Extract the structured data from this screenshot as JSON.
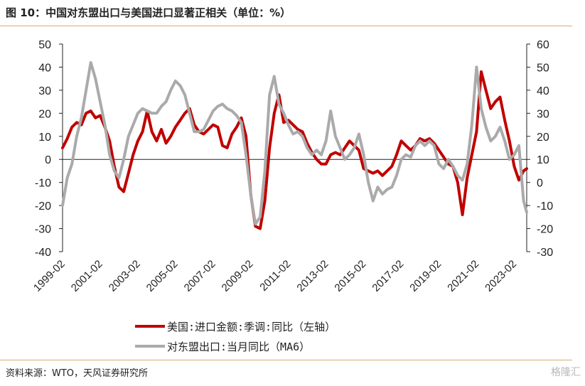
{
  "figure_title": "图 10：中国对东盟出口与美国进口显著正相关（单位：%）",
  "source": "资料来源：WTO，天风证券研究所",
  "watermark": "格隆汇",
  "colors": {
    "series_red": "#c00000",
    "series_gray": "#aaaaaa",
    "rule": "#d8a978"
  },
  "chart_data": {
    "type": "line",
    "title": "",
    "x_tick_labels": [
      "1999-02",
      "2001-02",
      "2003-02",
      "2005-02",
      "2007-02",
      "2009-02",
      "2011-02",
      "2013-02",
      "2015-02",
      "2017-02",
      "2019-02",
      "2021-02",
      "2023-02"
    ],
    "x_range": [
      "1999-02",
      "2023-10"
    ],
    "y_left": {
      "ticks": [
        50,
        40,
        30,
        20,
        10,
        0,
        -10,
        -20,
        -30,
        -40
      ],
      "range": [
        -40,
        50
      ]
    },
    "y_right": {
      "ticks": [
        60,
        50,
        40,
        30,
        20,
        10,
        0,
        -10,
        -20,
        -30
      ],
      "range": [
        -30,
        60
      ]
    },
    "series": [
      {
        "name": "美国:进口金额:季调:同比（左轴）",
        "axis": "left",
        "color": "#c00000",
        "points": [
          [
            "1999-02",
            5
          ],
          [
            "1999-05",
            9
          ],
          [
            "1999-08",
            14
          ],
          [
            "1999-11",
            16
          ],
          [
            "2000-02",
            15
          ],
          [
            "2000-05",
            20
          ],
          [
            "2000-08",
            21
          ],
          [
            "2000-11",
            18
          ],
          [
            "2001-02",
            19
          ],
          [
            "2001-05",
            14
          ],
          [
            "2001-08",
            8
          ],
          [
            "2001-11",
            -3
          ],
          [
            "2002-02",
            -12
          ],
          [
            "2002-05",
            -14
          ],
          [
            "2002-08",
            -6
          ],
          [
            "2002-11",
            2
          ],
          [
            "2003-02",
            8
          ],
          [
            "2003-05",
            12
          ],
          [
            "2003-08",
            21
          ],
          [
            "2003-11",
            12
          ],
          [
            "2004-02",
            8
          ],
          [
            "2004-05",
            13
          ],
          [
            "2004-08",
            7
          ],
          [
            "2004-11",
            10
          ],
          [
            "2005-02",
            14
          ],
          [
            "2005-05",
            17
          ],
          [
            "2005-08",
            20
          ],
          [
            "2005-11",
            22
          ],
          [
            "2006-02",
            15
          ],
          [
            "2006-05",
            12
          ],
          [
            "2006-08",
            11
          ],
          [
            "2006-11",
            13
          ],
          [
            "2007-02",
            15
          ],
          [
            "2007-05",
            14
          ],
          [
            "2007-08",
            6
          ],
          [
            "2007-11",
            5
          ],
          [
            "2008-02",
            11
          ],
          [
            "2008-05",
            14
          ],
          [
            "2008-08",
            18
          ],
          [
            "2008-11",
            10
          ],
          [
            "2009-02",
            -15
          ],
          [
            "2009-05",
            -29
          ],
          [
            "2009-08",
            -30
          ],
          [
            "2009-11",
            -18
          ],
          [
            "2010-02",
            5
          ],
          [
            "2010-05",
            20
          ],
          [
            "2010-08",
            28
          ],
          [
            "2010-11",
            16
          ],
          [
            "2011-02",
            17
          ],
          [
            "2011-05",
            15
          ],
          [
            "2011-08",
            13
          ],
          [
            "2011-11",
            12
          ],
          [
            "2012-02",
            7
          ],
          [
            "2012-05",
            3
          ],
          [
            "2012-08",
            0
          ],
          [
            "2012-11",
            -2
          ],
          [
            "2013-02",
            -2
          ],
          [
            "2013-05",
            2
          ],
          [
            "2013-08",
            3
          ],
          [
            "2013-11",
            2
          ],
          [
            "2014-02",
            5
          ],
          [
            "2014-05",
            8
          ],
          [
            "2014-08",
            6
          ],
          [
            "2014-11",
            4
          ],
          [
            "2015-02",
            -4
          ],
          [
            "2015-05",
            -5
          ],
          [
            "2015-08",
            -6
          ],
          [
            "2015-11",
            -5
          ],
          [
            "2016-02",
            -7
          ],
          [
            "2016-05",
            -5
          ],
          [
            "2016-08",
            -3
          ],
          [
            "2016-11",
            2
          ],
          [
            "2017-02",
            8
          ],
          [
            "2017-05",
            6
          ],
          [
            "2017-08",
            4
          ],
          [
            "2017-11",
            6
          ],
          [
            "2018-02",
            9
          ],
          [
            "2018-05",
            8
          ],
          [
            "2018-08",
            9
          ],
          [
            "2018-11",
            7
          ],
          [
            "2019-02",
            4
          ],
          [
            "2019-05",
            1
          ],
          [
            "2019-08",
            -2
          ],
          [
            "2019-11",
            -3
          ],
          [
            "2020-02",
            -10
          ],
          [
            "2020-05",
            -24
          ],
          [
            "2020-08",
            -8
          ],
          [
            "2020-11",
            2
          ],
          [
            "2021-02",
            12
          ],
          [
            "2021-05",
            38
          ],
          [
            "2021-08",
            30
          ],
          [
            "2021-11",
            22
          ],
          [
            "2022-02",
            25
          ],
          [
            "2022-05",
            27
          ],
          [
            "2022-08",
            17
          ],
          [
            "2022-11",
            8
          ],
          [
            "2023-02",
            -3
          ],
          [
            "2023-05",
            -9
          ],
          [
            "2023-08",
            -5
          ],
          [
            "2023-10",
            -4
          ]
        ]
      },
      {
        "name": "对东盟出口:当月同比（MA6）",
        "axis": "right",
        "color": "#aaaaaa",
        "points": [
          [
            "1999-02",
            -10
          ],
          [
            "1999-05",
            2
          ],
          [
            "1999-08",
            8
          ],
          [
            "1999-11",
            20
          ],
          [
            "2000-02",
            28
          ],
          [
            "2000-05",
            40
          ],
          [
            "2000-08",
            52
          ],
          [
            "2000-11",
            45
          ],
          [
            "2001-02",
            35
          ],
          [
            "2001-05",
            25
          ],
          [
            "2001-08",
            12
          ],
          [
            "2001-11",
            5
          ],
          [
            "2002-02",
            2
          ],
          [
            "2002-05",
            10
          ],
          [
            "2002-08",
            20
          ],
          [
            "2002-11",
            25
          ],
          [
            "2003-02",
            30
          ],
          [
            "2003-05",
            32
          ],
          [
            "2003-08",
            31
          ],
          [
            "2003-11",
            30
          ],
          [
            "2004-02",
            30
          ],
          [
            "2004-05",
            33
          ],
          [
            "2004-08",
            35
          ],
          [
            "2004-11",
            40
          ],
          [
            "2005-02",
            44
          ],
          [
            "2005-05",
            42
          ],
          [
            "2005-08",
            38
          ],
          [
            "2005-11",
            30
          ],
          [
            "2006-02",
            22
          ],
          [
            "2006-05",
            22
          ],
          [
            "2006-08",
            23
          ],
          [
            "2006-11",
            27
          ],
          [
            "2007-02",
            31
          ],
          [
            "2007-05",
            33
          ],
          [
            "2007-08",
            34
          ],
          [
            "2007-11",
            32
          ],
          [
            "2008-02",
            31
          ],
          [
            "2008-05",
            29
          ],
          [
            "2008-08",
            26
          ],
          [
            "2008-11",
            12
          ],
          [
            "2009-02",
            -5
          ],
          [
            "2009-05",
            -18
          ],
          [
            "2009-08",
            -15
          ],
          [
            "2009-11",
            5
          ],
          [
            "2010-02",
            38
          ],
          [
            "2010-05",
            46
          ],
          [
            "2010-08",
            34
          ],
          [
            "2010-11",
            30
          ],
          [
            "2011-02",
            25
          ],
          [
            "2011-05",
            21
          ],
          [
            "2011-08",
            22
          ],
          [
            "2011-11",
            20
          ],
          [
            "2012-02",
            15
          ],
          [
            "2012-05",
            12
          ],
          [
            "2012-08",
            14
          ],
          [
            "2012-11",
            12
          ],
          [
            "2013-02",
            18
          ],
          [
            "2013-05",
            31
          ],
          [
            "2013-08",
            20
          ],
          [
            "2013-11",
            15
          ],
          [
            "2014-02",
            10
          ],
          [
            "2014-05",
            12
          ],
          [
            "2014-08",
            15
          ],
          [
            "2014-11",
            21
          ],
          [
            "2015-02",
            12
          ],
          [
            "2015-05",
            0
          ],
          [
            "2015-08",
            -8
          ],
          [
            "2015-11",
            -2
          ],
          [
            "2016-02",
            -5
          ],
          [
            "2016-05",
            -3
          ],
          [
            "2016-08",
            -2
          ],
          [
            "2016-11",
            3
          ],
          [
            "2017-02",
            10
          ],
          [
            "2017-05",
            12
          ],
          [
            "2017-08",
            11
          ],
          [
            "2017-11",
            16
          ],
          [
            "2018-02",
            18
          ],
          [
            "2018-05",
            16
          ],
          [
            "2018-08",
            18
          ],
          [
            "2018-11",
            16
          ],
          [
            "2019-02",
            8
          ],
          [
            "2019-05",
            6
          ],
          [
            "2019-08",
            10
          ],
          [
            "2019-11",
            7
          ],
          [
            "2020-02",
            3
          ],
          [
            "2020-05",
            1
          ],
          [
            "2020-08",
            8
          ],
          [
            "2020-11",
            25
          ],
          [
            "2021-02",
            50
          ],
          [
            "2021-05",
            32
          ],
          [
            "2021-08",
            24
          ],
          [
            "2021-11",
            18
          ],
          [
            "2022-02",
            20
          ],
          [
            "2022-05",
            24
          ],
          [
            "2022-08",
            18
          ],
          [
            "2022-11",
            10
          ],
          [
            "2023-02",
            12
          ],
          [
            "2023-05",
            16
          ],
          [
            "2023-08",
            -8
          ],
          [
            "2023-10",
            -13
          ]
        ]
      }
    ],
    "zero_line": true,
    "grid": false,
    "legend_position": "bottom-center"
  }
}
